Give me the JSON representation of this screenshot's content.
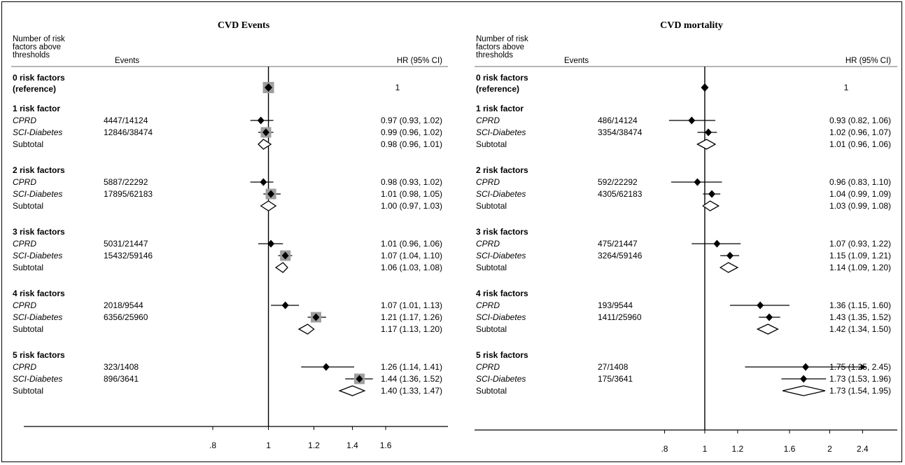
{
  "chart_data": [
    {
      "type": "forest",
      "title": "CVD Events",
      "col_headers": {
        "group": "Number of risk factors above thresholds",
        "events": "Events",
        "hr": "HR (95% CI)"
      },
      "x_scale": "log",
      "xlim": [
        0.65,
        1.75
      ],
      "xticks": [
        0.8,
        1,
        1.2,
        1.4,
        1.6
      ],
      "xtick_labels": [
        ".8",
        "1",
        "1.2",
        "1.4",
        "1.6"
      ],
      "reference_line": 1,
      "reference": {
        "label": "0 risk factors",
        "label2": "(reference)",
        "hr": 1,
        "hr_text": "1"
      },
      "groups": [
        {
          "label": "1 risk factor",
          "rows": [
            {
              "name": "CPRD",
              "kind": "study",
              "events": "4447/14124",
              "hr": 0.97,
              "lo": 0.93,
              "hi": 1.02,
              "hr_text": "0.97 (0.93, 1.02)"
            },
            {
              "name": "SCI-Diabetes",
              "kind": "study",
              "events": "12846/38474",
              "hr": 0.99,
              "lo": 0.96,
              "hi": 1.02,
              "hr_text": "0.99 (0.96, 1.02)"
            },
            {
              "name": "Subtotal",
              "kind": "subtotal",
              "events": "",
              "hr": 0.98,
              "lo": 0.96,
              "hi": 1.01,
              "hr_text": "0.98 (0.96, 1.01)"
            }
          ]
        },
        {
          "label": "2 risk factors",
          "rows": [
            {
              "name": "CPRD",
              "kind": "study",
              "events": "5887/22292",
              "hr": 0.98,
              "lo": 0.93,
              "hi": 1.02,
              "hr_text": "0.98 (0.93, 1.02)"
            },
            {
              "name": "SCI-Diabetes",
              "kind": "study",
              "events": "17895/62183",
              "hr": 1.01,
              "lo": 0.98,
              "hi": 1.05,
              "hr_text": "1.01 (0.98, 1.05)"
            },
            {
              "name": "Subtotal",
              "kind": "subtotal",
              "events": "",
              "hr": 1.0,
              "lo": 0.97,
              "hi": 1.03,
              "hr_text": "1.00 (0.97, 1.03)"
            }
          ]
        },
        {
          "label": "3 risk factors",
          "rows": [
            {
              "name": "CPRD",
              "kind": "study",
              "events": "5031/21447",
              "hr": 1.01,
              "lo": 0.96,
              "hi": 1.06,
              "hr_text": "1.01 (0.96, 1.06)"
            },
            {
              "name": "SCI-Diabetes",
              "kind": "study",
              "events": "15432/59146",
              "hr": 1.07,
              "lo": 1.04,
              "hi": 1.1,
              "hr_text": "1.07 (1.04, 1.10)"
            },
            {
              "name": "Subtotal",
              "kind": "subtotal",
              "events": "",
              "hr": 1.06,
              "lo": 1.03,
              "hi": 1.08,
              "hr_text": "1.06 (1.03, 1.08)"
            }
          ]
        },
        {
          "label": "4 risk factors",
          "rows": [
            {
              "name": "CPRD",
              "kind": "study",
              "events": "2018/9544",
              "hr": 1.07,
              "lo": 1.01,
              "hi": 1.13,
              "hr_text": "1.07 (1.01, 1.13)"
            },
            {
              "name": "SCI-Diabetes",
              "kind": "study",
              "events": "6356/25960",
              "hr": 1.21,
              "lo": 1.17,
              "hi": 1.26,
              "hr_text": "1.21 (1.17, 1.26)"
            },
            {
              "name": "Subtotal",
              "kind": "subtotal",
              "events": "",
              "hr": 1.17,
              "lo": 1.13,
              "hi": 1.2,
              "hr_text": "1.17 (1.13, 1.20)"
            }
          ]
        },
        {
          "label": "5 risk factors",
          "rows": [
            {
              "name": "CPRD",
              "kind": "study",
              "events": "323/1408",
              "hr": 1.26,
              "lo": 1.14,
              "hi": 1.41,
              "hr_text": "1.26 (1.14, 1.41)"
            },
            {
              "name": "SCI-Diabetes",
              "kind": "study",
              "events": "896/3641",
              "hr": 1.44,
              "lo": 1.36,
              "hi": 1.52,
              "hr_text": "1.44 (1.36, 1.52)"
            },
            {
              "name": "Subtotal",
              "kind": "subtotal",
              "events": "",
              "hr": 1.4,
              "lo": 1.33,
              "hi": 1.47,
              "hr_text": "1.40 (1.33, 1.47)"
            }
          ]
        }
      ]
    },
    {
      "type": "forest",
      "title": "CVD mortality",
      "col_headers": {
        "group": "Number of risk factors above thresholds",
        "events": "Events",
        "hr": "HR (95% CI)"
      },
      "x_scale": "log",
      "xlim": [
        0.65,
        2.55
      ],
      "xticks": [
        0.8,
        1,
        1.2,
        1.6,
        2,
        2.4
      ],
      "xtick_labels": [
        ".8",
        "1",
        "1.2",
        "1.6",
        "2",
        "2.4"
      ],
      "reference_line": 1,
      "reference": {
        "label": "0 risk factors",
        "label2": "(reference)",
        "hr": 1,
        "hr_text": "1"
      },
      "groups": [
        {
          "label": "1 risk factor",
          "rows": [
            {
              "name": "CPRD",
              "kind": "study",
              "events": "486/14124",
              "hr": 0.93,
              "lo": 0.82,
              "hi": 1.06,
              "hr_text": "0.93 (0.82, 1.06)"
            },
            {
              "name": "SCI-Diabetes",
              "kind": "study",
              "events": "3354/38474",
              "hr": 1.02,
              "lo": 0.96,
              "hi": 1.07,
              "hr_text": "1.02 (0.96, 1.07)"
            },
            {
              "name": "Subtotal",
              "kind": "subtotal",
              "events": "",
              "hr": 1.01,
              "lo": 0.96,
              "hi": 1.06,
              "hr_text": "1.01 (0.96, 1.06)"
            }
          ]
        },
        {
          "label": "2 risk factors",
          "rows": [
            {
              "name": "CPRD",
              "kind": "study",
              "events": "592/22292",
              "hr": 0.96,
              "lo": 0.83,
              "hi": 1.1,
              "hr_text": "0.96 (0.83, 1.10)"
            },
            {
              "name": "SCI-Diabetes",
              "kind": "study",
              "events": "4305/62183",
              "hr": 1.04,
              "lo": 0.99,
              "hi": 1.09,
              "hr_text": "1.04 (0.99, 1.09)"
            },
            {
              "name": "Subtotal",
              "kind": "subtotal",
              "events": "",
              "hr": 1.03,
              "lo": 0.99,
              "hi": 1.08,
              "hr_text": "1.03 (0.99, 1.08)"
            }
          ]
        },
        {
          "label": "3 risk factors",
          "rows": [
            {
              "name": "CPRD",
              "kind": "study",
              "events": "475/21447",
              "hr": 1.07,
              "lo": 0.93,
              "hi": 1.22,
              "hr_text": "1.07 (0.93, 1.22)"
            },
            {
              "name": "SCI-Diabetes",
              "kind": "study",
              "events": "3264/59146",
              "hr": 1.15,
              "lo": 1.09,
              "hi": 1.21,
              "hr_text": "1.15 (1.09, 1.21)"
            },
            {
              "name": "Subtotal",
              "kind": "subtotal",
              "events": "",
              "hr": 1.14,
              "lo": 1.09,
              "hi": 1.2,
              "hr_text": "1.14 (1.09, 1.20)"
            }
          ]
        },
        {
          "label": "4 risk factors",
          "rows": [
            {
              "name": "CPRD",
              "kind": "study",
              "events": "193/9544",
              "hr": 1.36,
              "lo": 1.15,
              "hi": 1.6,
              "hr_text": "1.36 (1.15, 1.60)"
            },
            {
              "name": "SCI-Diabetes",
              "kind": "study",
              "events": "1411/25960",
              "hr": 1.43,
              "lo": 1.35,
              "hi": 1.52,
              "hr_text": "1.43 (1.35, 1.52)"
            },
            {
              "name": "Subtotal",
              "kind": "subtotal",
              "events": "",
              "hr": 1.42,
              "lo": 1.34,
              "hi": 1.5,
              "hr_text": "1.42 (1.34, 1.50)"
            }
          ]
        },
        {
          "label": "5 risk factors",
          "rows": [
            {
              "name": "CPRD",
              "kind": "study",
              "events": "27/1408",
              "hr": 1.75,
              "lo": 1.25,
              "hi": 2.45,
              "hr_text": "1.75 (1.25, 2.45)",
              "arrow_right": true
            },
            {
              "name": "SCI-Diabetes",
              "kind": "study",
              "events": "175/3641",
              "hr": 1.73,
              "lo": 1.53,
              "hi": 1.96,
              "hr_text": "1.73 (1.53, 1.96)"
            },
            {
              "name": "Subtotal",
              "kind": "subtotal",
              "events": "",
              "hr": 1.73,
              "lo": 1.54,
              "hi": 1.95,
              "hr_text": "1.73 (1.54, 1.95)"
            }
          ]
        }
      ]
    }
  ],
  "colors": {
    "ink": "#000000",
    "weight_box": "#9e9e9e",
    "rule": "#9e9e9e"
  }
}
